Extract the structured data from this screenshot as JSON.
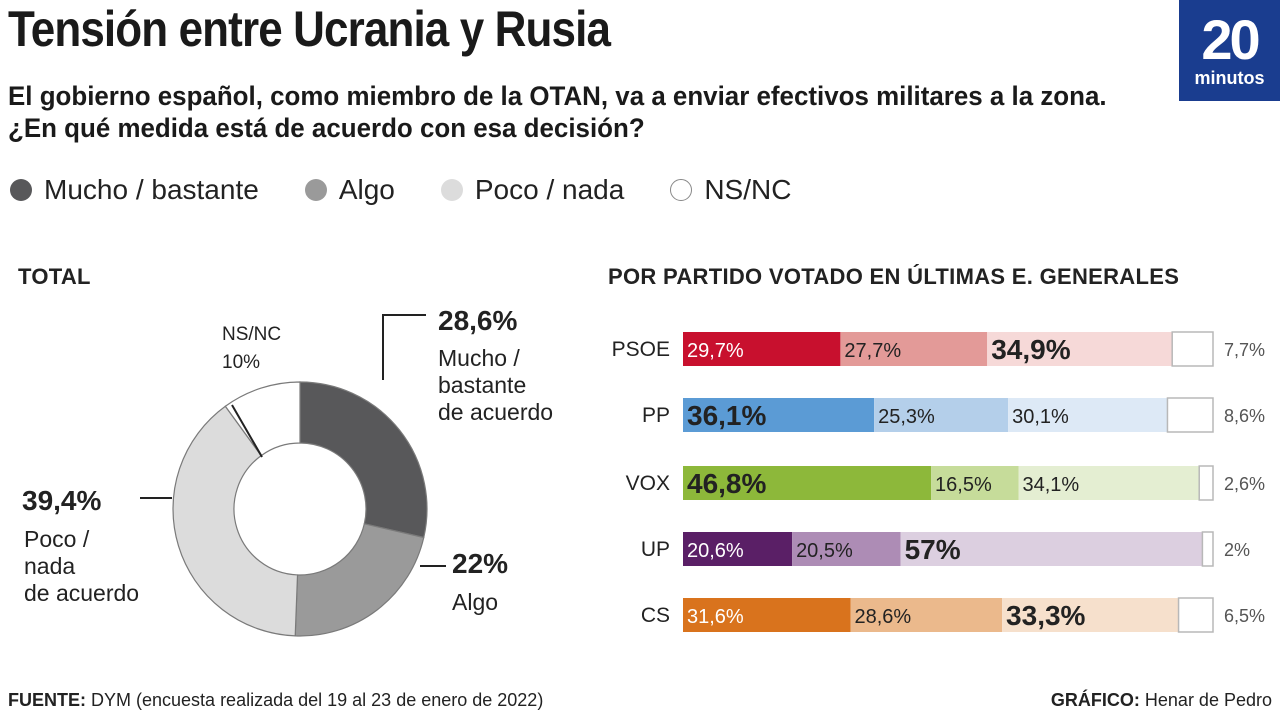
{
  "title": "Tensión entre Ucrania y Rusia",
  "subtitle": "El gobierno español, como miembro de la OTAN, va a enviar efectivos militares a la zona. ¿En qué medida está de acuerdo con esa decisión?",
  "logo": {
    "number": "20",
    "word": "minutos",
    "color": "#1a3d8f"
  },
  "legend": [
    {
      "label": "Mucho / bastante",
      "color": "#58585a"
    },
    {
      "label": "Algo",
      "color": "#9a9a9a"
    },
    {
      "label": "Poco / nada",
      "color": "#dcdcdc"
    },
    {
      "label": "NS/NC",
      "color": "#ffffff"
    }
  ],
  "total_title": "TOTAL",
  "party_title": "POR PARTIDO VOTADO EN ÚLTIMAS E. GENERALES",
  "footer": {
    "source_label": "FUENTE:",
    "source_text": "DYM (encuesta realizada del 19 al 23 de enero de 2022)",
    "graphic_label": "GRÁFICO:",
    "graphic_text": "Henar de Pedro"
  },
  "chart_data": [
    {
      "type": "pie",
      "title": "TOTAL",
      "slices": [
        {
          "key": "mucho",
          "value": 28.6,
          "pct_label": "28,6%",
          "desc": [
            "Mucho /",
            "bastante",
            "de acuerdo"
          ],
          "color": "#58585a"
        },
        {
          "key": "algo",
          "value": 22.0,
          "pct_label": "22%",
          "desc": [
            "Algo"
          ],
          "color": "#9a9a9a"
        },
        {
          "key": "poco",
          "value": 39.4,
          "pct_label": "39,4%",
          "desc": [
            "Poco /",
            "nada",
            "de acuerdo"
          ],
          "color": "#dcdcdc"
        },
        {
          "key": "nsnc",
          "value": 10.0,
          "pct_label": "10%",
          "desc": [
            "NS/NC"
          ],
          "color": "#ffffff"
        }
      ]
    },
    {
      "type": "bar",
      "stacked": true,
      "orientation": "horizontal",
      "title": "POR PARTIDO VOTADO EN ÚLTIMAS E. GENERALES",
      "categories": [
        "PSOE",
        "PP",
        "VOX",
        "UP",
        "CS"
      ],
      "series": [
        {
          "name": "Mucho / bastante",
          "values": [
            29.7,
            36.1,
            46.8,
            20.6,
            31.6
          ],
          "labels": [
            "29,7%",
            "36,1%",
            "46,8%",
            "20,6%",
            "31,6%"
          ]
        },
        {
          "name": "Algo",
          "values": [
            27.7,
            25.3,
            16.5,
            20.5,
            28.6
          ],
          "labels": [
            "27,7%",
            "25,3%",
            "16,5%",
            "20,5%",
            "28,6%"
          ]
        },
        {
          "name": "Poco / nada",
          "values": [
            34.9,
            30.1,
            34.1,
            57.0,
            33.3
          ],
          "labels": [
            "34,9%",
            "30,1%",
            "34,1%",
            "57%",
            "33,3%"
          ]
        },
        {
          "name": "NS/NC",
          "values": [
            7.7,
            8.6,
            2.6,
            2.0,
            6.5
          ],
          "labels": [
            "7,7%",
            "8,6%",
            "2,6%",
            "2%",
            "6,5%"
          ]
        }
      ],
      "colors": [
        [
          "#c8102e",
          "#e39a98",
          "#f6d9d8",
          "#ffffff"
        ],
        [
          "#5b9bd5",
          "#b4cfea",
          "#dde9f6",
          "#ffffff"
        ],
        [
          "#8db83a",
          "#c6dc9a",
          "#e4eed2",
          "#ffffff"
        ],
        [
          "#5a1f66",
          "#ad8cb5",
          "#dccfe0",
          "#ffffff"
        ],
        [
          "#d9731d",
          "#ebb98c",
          "#f6e0cc",
          "#ffffff"
        ]
      ],
      "bold_segment": [
        2,
        0,
        0,
        2,
        2
      ]
    }
  ]
}
